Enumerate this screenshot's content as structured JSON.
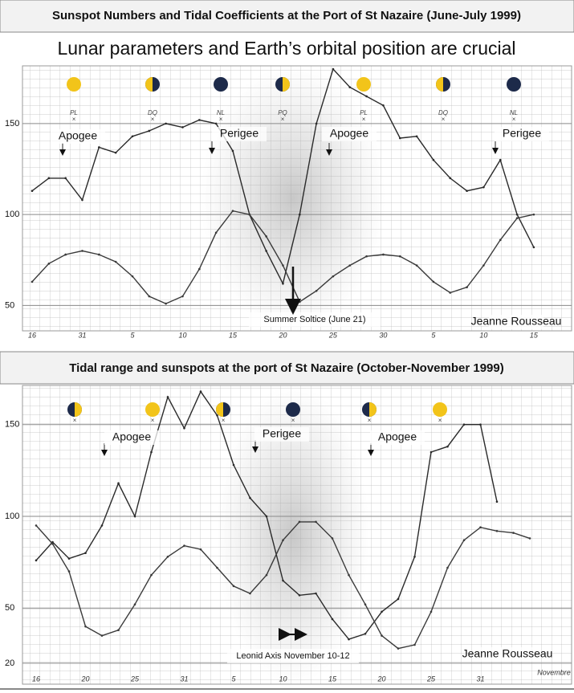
{
  "chart_data": [
    {
      "type": "line",
      "title": "Sunspot Numbers and Tidal Coefficients at the Port of St Nazaire (June-July 1999)",
      "subtitle": "Lunar parameters and Earth’s orbital position are crucial",
      "categories": [
        "16",
        null,
        null,
        "31",
        null,
        null,
        "5",
        null,
        null,
        "10",
        null,
        null,
        "15",
        null,
        null,
        "20",
        null,
        null,
        "25",
        null,
        null,
        "30",
        null,
        null,
        "5",
        null,
        null,
        "10",
        null,
        null,
        "15"
      ],
      "series": [
        {
          "color": "#2a2a2a",
          "values": [
            113,
            120,
            120,
            108,
            137,
            134,
            143,
            146,
            150,
            148,
            152,
            150,
            135,
            100,
            80,
            62,
            100,
            150,
            180,
            170,
            165,
            160,
            142,
            143,
            130,
            120,
            113,
            115,
            130,
            100,
            82
          ]
        },
        {
          "color": "#3a3a3a",
          "values": [
            63,
            73,
            78,
            80,
            78,
            74,
            66,
            55,
            51,
            55,
            70,
            90,
            102,
            100,
            88,
            72,
            52,
            58,
            66,
            72,
            77,
            78,
            77,
            72,
            63,
            57,
            60,
            72,
            86,
            98,
            100
          ]
        }
      ],
      "ylim": [
        40,
        180
      ],
      "yticks": [
        50,
        100,
        150
      ],
      "grid": true,
      "phase_labels": [
        "PL",
        "DQ",
        "NL",
        "PQ",
        "PL",
        "DQ",
        "NL"
      ],
      "annotations": [
        "Apogee",
        "Perigee",
        "Apogee",
        "Perigee",
        "Summer Soltice (June 21)",
        "Jeanne Rousseau"
      ]
    },
    {
      "type": "line",
      "title": "Tidal range and sunspots at the port of St Nazaire (October-November 1999)",
      "categories": [
        "16",
        null,
        null,
        "20",
        null,
        null,
        "25",
        null,
        null,
        "31",
        null,
        null,
        "5",
        null,
        null,
        "10",
        null,
        null,
        "15",
        null,
        null,
        "20",
        null,
        null,
        "25",
        null,
        null,
        "31",
        null,
        null,
        null
      ],
      "series": [
        {
          "color": "#2a2a2a",
          "values": [
            76,
            86,
            77,
            80,
            95,
            118,
            100,
            135,
            165,
            148,
            168,
            155,
            128,
            110,
            100,
            65,
            57,
            58,
            44,
            33,
            36,
            48,
            55,
            78,
            135,
            138,
            150,
            150,
            108,
            null,
            null
          ]
        },
        {
          "color": "#3a3a3a",
          "values": [
            95,
            85,
            70,
            40,
            35,
            38,
            52,
            68,
            78,
            84,
            82,
            72,
            62,
            58,
            68,
            87,
            97,
            97,
            88,
            68,
            52,
            35,
            28,
            30,
            48,
            72,
            87,
            94,
            92,
            91,
            88
          ]
        }
      ],
      "ylim": [
        16,
        170
      ],
      "yticks": [
        20,
        50,
        100,
        150
      ],
      "grid": true,
      "annotations": [
        "Apogee",
        "Perigee",
        "Apogee",
        "Leonid Axis November 10-12",
        "Jeanne Rousseau",
        "Novembre"
      ]
    }
  ]
}
